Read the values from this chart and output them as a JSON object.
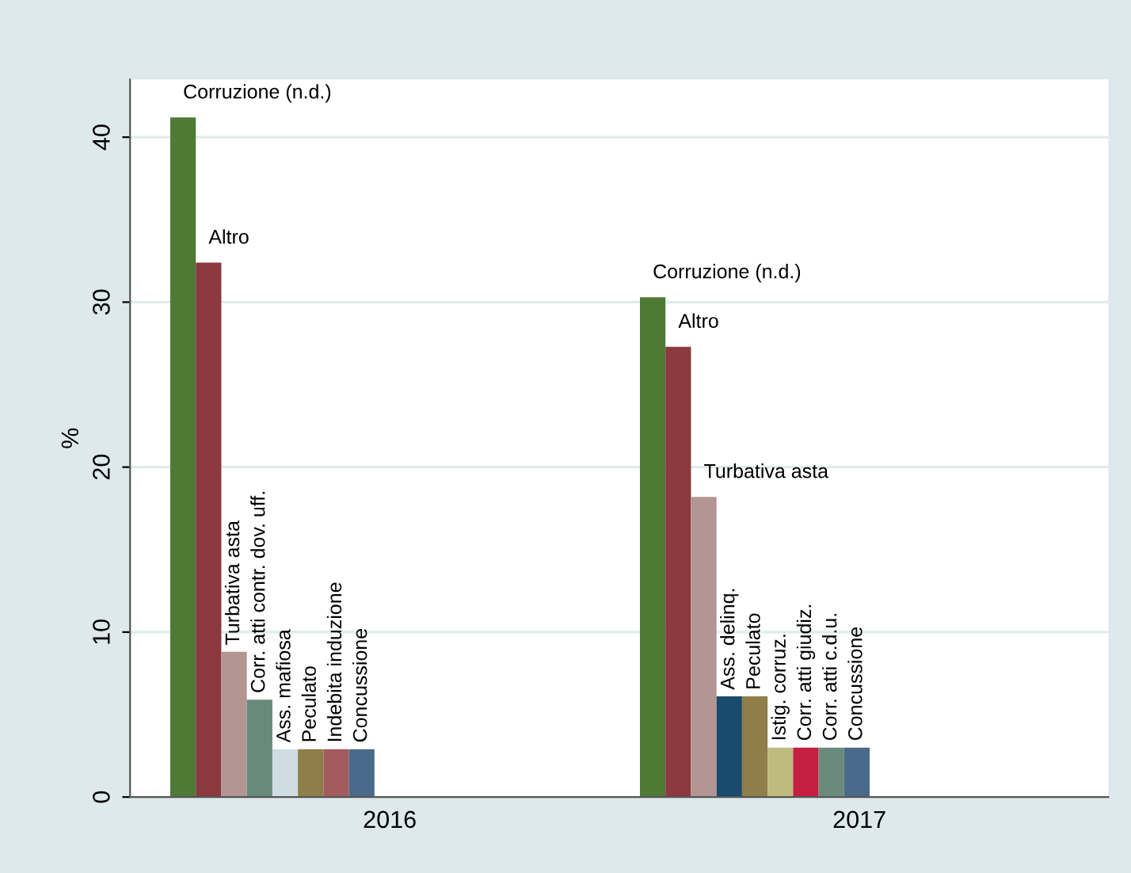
{
  "chart_data": {
    "type": "bar",
    "ylabel": "%",
    "categories": [
      "2016",
      "2017"
    ],
    "series": [
      {
        "name": "Corruzione (n.d.)",
        "color": "#4f7a35",
        "values": [
          41.2,
          30.3
        ]
      },
      {
        "name": "Altro",
        "color": "#8b3a3f",
        "values": [
          32.4,
          27.3
        ]
      },
      {
        "name": "Turbativa asta",
        "color": "#b39591",
        "values": [
          8.8,
          18.2
        ]
      },
      {
        "name": "Corr. atti contr. dov. uff.",
        "color": "#688a7b",
        "values": [
          5.9,
          null
        ]
      },
      {
        "name": "Ass. mafiosa",
        "color": "#cfdde3",
        "values": [
          2.9,
          null
        ]
      },
      {
        "name": "Ass. delinq.",
        "color": "#1a4a6e",
        "values": [
          null,
          6.1
        ]
      },
      {
        "name": "Peculato",
        "color": "#8f7e48",
        "values": [
          2.9,
          6.1
        ]
      },
      {
        "name": "Indebita induzione",
        "color": "#a35b5e",
        "values": [
          2.9,
          null
        ]
      },
      {
        "name": "Istig. corruz.",
        "color": "#bfbb7f",
        "values": [
          null,
          3.0
        ]
      },
      {
        "name": "Corr. atti giudiz.",
        "color": "#c41f40",
        "values": [
          null,
          3.0
        ]
      },
      {
        "name": "Corr. atti c.d.u.",
        "color": "#6a8a7d",
        "values": [
          null,
          3.0
        ]
      },
      {
        "name": "Concussione",
        "color": "#4a6a8c",
        "values": [
          2.9,
          3.0
        ]
      }
    ],
    "ylim": [
      0,
      43.5
    ],
    "yticks": [
      0,
      10,
      20,
      30,
      40
    ],
    "grid": "y",
    "legend": false
  }
}
